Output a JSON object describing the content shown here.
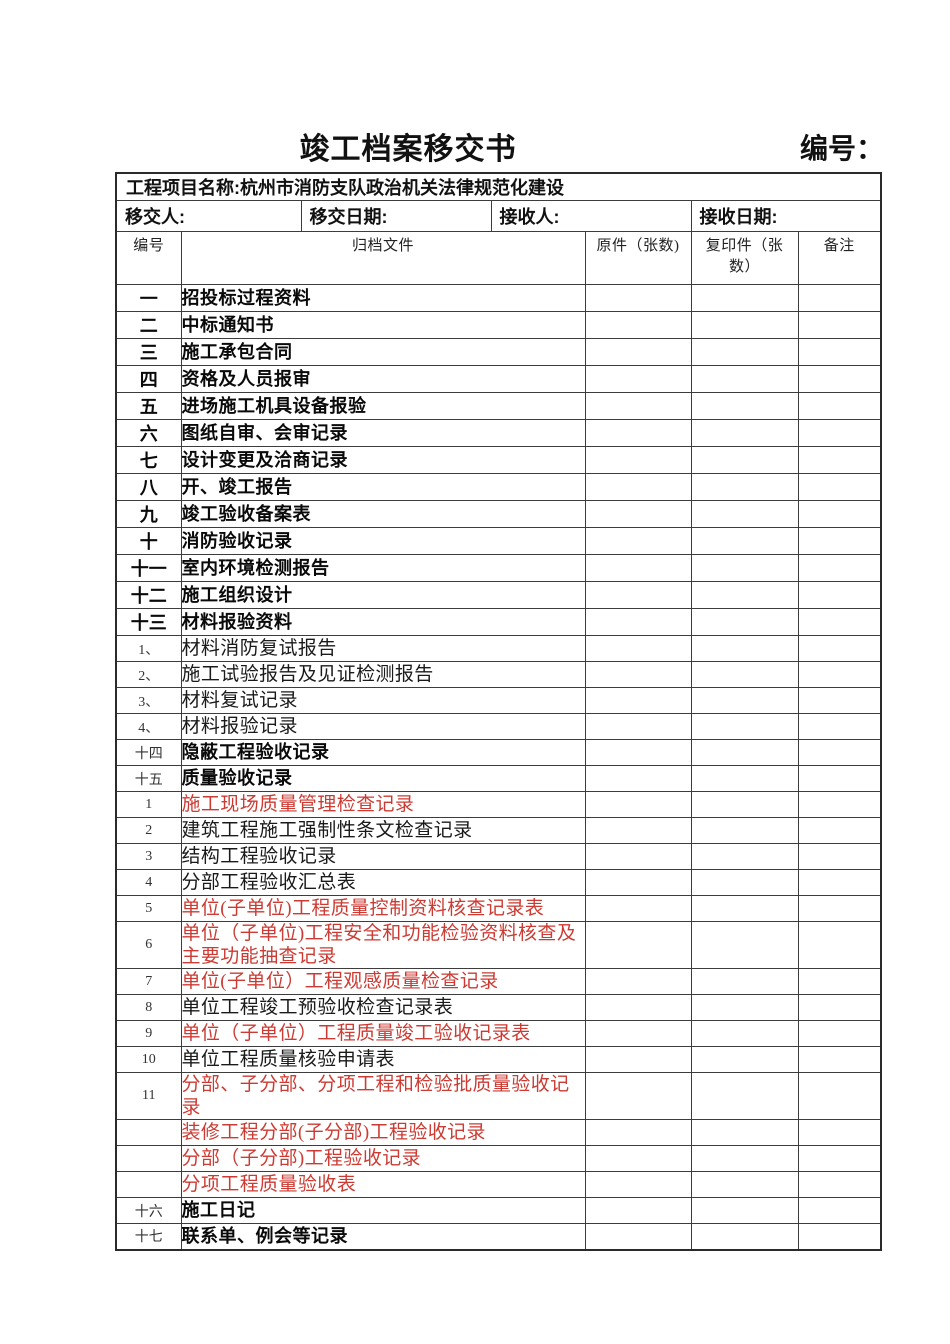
{
  "page": {
    "title": "竣工档案移交书",
    "number_label": "编号："
  },
  "info": {
    "project": "工程项目名称:杭州市消防支队政治机关法律规范化建设",
    "fields": [
      "移交人:",
      "移交日期:",
      "接收人:",
      "接收日期:"
    ]
  },
  "columns": {
    "no": "编号",
    "file": "归档文件",
    "original": "原件（张数)",
    "copy": "复印件（张数）",
    "remark": "备注"
  },
  "colors": {
    "red_text": "#cc3b33",
    "black_text": "#111111",
    "border": "#3c3c3c"
  },
  "rows": [
    {
      "num": "一",
      "text": "招投标过程资料",
      "num_style": "bold",
      "text_style": "bold",
      "color": "black"
    },
    {
      "num": "二",
      "text": "中标通知书",
      "num_style": "bold",
      "text_style": "bold",
      "color": "black"
    },
    {
      "num": "三",
      "text": "施工承包合同",
      "num_style": "bold",
      "text_style": "bold",
      "color": "black"
    },
    {
      "num": "四",
      "text": "资格及人员报审",
      "num_style": "bold",
      "text_style": "bold",
      "color": "black"
    },
    {
      "num": "五",
      "text": "进场施工机具设备报验",
      "num_style": "bold",
      "text_style": "bold",
      "color": "black"
    },
    {
      "num": "六",
      "text": "图纸自审、会审记录",
      "num_style": "bold",
      "text_style": "bold",
      "color": "black"
    },
    {
      "num": "七",
      "text": "设计变更及洽商记录",
      "num_style": "bold",
      "text_style": "bold",
      "color": "black"
    },
    {
      "num": "八",
      "text": "开、竣工报告",
      "num_style": "bold",
      "text_style": "bold",
      "color": "black"
    },
    {
      "num": "九",
      "text": "竣工验收备案表",
      "num_style": "bold",
      "text_style": "bold",
      "color": "black"
    },
    {
      "num": "十",
      "text": "消防验收记录",
      "num_style": "bold",
      "text_style": "bold",
      "color": "black"
    },
    {
      "num": "十一",
      "text": "室内环境检测报告",
      "num_style": "bold",
      "text_style": "bold",
      "color": "black"
    },
    {
      "num": "十二",
      "text": "施工组织设计",
      "num_style": "bold",
      "text_style": "bold",
      "color": "black"
    },
    {
      "num": "十三",
      "text": "材料报验资料",
      "num_style": "bold",
      "text_style": "bold",
      "color": "black"
    },
    {
      "num": "1、",
      "text": "材料消防复试报告",
      "num_style": "serif",
      "text_style": "serif",
      "color": "black"
    },
    {
      "num": "2、",
      "text": "施工试验报告及见证检测报告",
      "num_style": "serif",
      "text_style": "serif",
      "color": "black"
    },
    {
      "num": "3、",
      "text": "材料复试记录",
      "num_style": "serif",
      "text_style": "serif",
      "color": "black"
    },
    {
      "num": "4、",
      "text": "材料报验记录",
      "num_style": "serif",
      "text_style": "serif",
      "color": "black"
    },
    {
      "num": "十四",
      "text": "隐蔽工程验收记录",
      "num_style": "serif",
      "text_style": "bold",
      "color": "black"
    },
    {
      "num": "十五",
      "text": "质量验收记录",
      "num_style": "serif",
      "text_style": "bold",
      "color": "black"
    },
    {
      "num": "1",
      "text": "施工现场质量管理检查记录",
      "num_style": "serif",
      "text_style": "serif",
      "color": "red"
    },
    {
      "num": "2",
      "text": "建筑工程施工强制性条文检查记录",
      "num_style": "serif",
      "text_style": "serif",
      "color": "black"
    },
    {
      "num": "3",
      "text": "结构工程验收记录",
      "num_style": "serif",
      "text_style": "serif",
      "color": "black"
    },
    {
      "num": "4",
      "text": "分部工程验收汇总表",
      "num_style": "serif",
      "text_style": "serif",
      "color": "black"
    },
    {
      "num": "5",
      "text": "单位(子单位)工程质量控制资料核查记录表",
      "num_style": "serif",
      "text_style": "serif",
      "color": "red"
    },
    {
      "num": "6",
      "text": "单位（子单位)工程安全和功能检验资料核查及主要功能抽查记录",
      "num_style": "serif",
      "text_style": "serif",
      "color": "red"
    },
    {
      "num": "7",
      "text": "单位(子单位）工程观感质量检查记录",
      "num_style": "serif",
      "text_style": "serif",
      "color": "red"
    },
    {
      "num": "8",
      "text": "单位工程竣工预验收检查记录表",
      "num_style": "serif",
      "text_style": "serif",
      "color": "black"
    },
    {
      "num": "9",
      "text": "单位（子单位）工程质量竣工验收记录表",
      "num_style": "serif",
      "text_style": "serif",
      "color": "red"
    },
    {
      "num": "10",
      "text": "单位工程质量核验申请表",
      "num_style": "serif",
      "text_style": "serif",
      "color": "black"
    },
    {
      "num": "11",
      "text": "分部、子分部、分项工程和检验批质量验收记录",
      "num_style": "serif",
      "text_style": "serif",
      "color": "red"
    },
    {
      "num": "",
      "text": "装修工程分部(子分部)工程验收记录",
      "num_style": "serif",
      "text_style": "serif",
      "color": "red"
    },
    {
      "num": "",
      "text": "分部（子分部)工程验收记录",
      "num_style": "serif",
      "text_style": "serif",
      "color": "red"
    },
    {
      "num": "",
      "text": "分项工程质量验收表",
      "num_style": "serif",
      "text_style": "serif",
      "color": "red"
    },
    {
      "num": "十六",
      "text": "施工日记",
      "num_style": "serif",
      "text_style": "bold",
      "color": "black"
    },
    {
      "num": "十七",
      "text": "联系单、例会等记录",
      "num_style": "serif",
      "text_style": "bold",
      "color": "black"
    }
  ]
}
